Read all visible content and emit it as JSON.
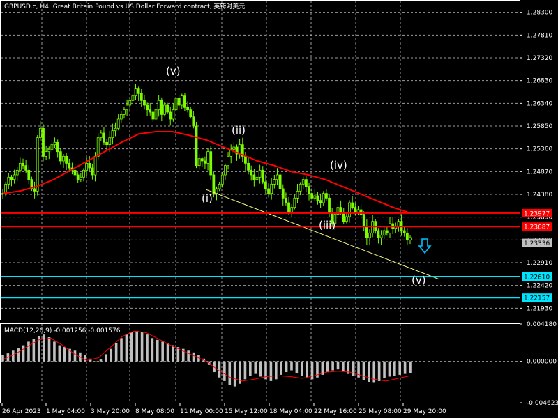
{
  "header": {
    "title": "GBPUSD.c, H4:  Great Britain Pound vs US Dollar Forward contract, 英镑对美元"
  },
  "price_axis": {
    "ticks": [
      "1.28300",
      "1.27810",
      "1.27320",
      "1.26830",
      "1.26340",
      "1.25850",
      "1.25360",
      "1.24870",
      "1.24380",
      "1.23890",
      "1.23400",
      "1.22910",
      "1.22420",
      "1.21930"
    ]
  },
  "price_lines": [
    {
      "name": "resistance-upper",
      "price": "1.23977",
      "color": "#ff0000"
    },
    {
      "name": "resistance-lower",
      "price": "1.23687",
      "color": "#ff0000"
    },
    {
      "name": "current-price",
      "price": "1.23336",
      "color": "#c0c0c0"
    },
    {
      "name": "target-1",
      "price": "1.22610",
      "color": "#00e5ff"
    },
    {
      "name": "target-2",
      "price": "1.22157",
      "color": "#00e5ff"
    }
  ],
  "wave_labels": [
    {
      "text": "(v)"
    },
    {
      "text": "(ii)"
    },
    {
      "text": "(iv)"
    },
    {
      "text": "(i)"
    },
    {
      "text": "(iii)"
    },
    {
      "text": "(v)"
    }
  ],
  "indicator": {
    "label": "MACD(12,26,9) -0.001256 -0.001576",
    "ticks": [
      "0.004180",
      "0.000000",
      "-0.004623"
    ]
  },
  "time_axis": {
    "ticks": [
      "26 Apr 2023",
      "1 May 04:00",
      "3 May 20:00",
      "8 May 08:00",
      "11 May 00:00",
      "15 May 12:00",
      "18 May 04:00",
      "22 May 16:00",
      "25 May 08:00",
      "29 May 20:00"
    ]
  },
  "colors": {
    "candle": "#7cfc00",
    "moving_average": "#ff0000",
    "trendline": "#ffff80",
    "macd_hist": "#c0c0c0",
    "macd_signal": "#ff0000",
    "arrow": "#00bfff",
    "grid": "#cfcfcf"
  },
  "chart_data": {
    "type": "candlestick",
    "symbol": "GBPUSD.c",
    "timeframe": "H4",
    "ylim": [
      1.2168,
      1.2855
    ],
    "close_path": [
      1.244,
      1.246,
      1.2475,
      1.247,
      1.248,
      1.249,
      1.2505,
      1.25,
      1.249,
      1.247,
      1.245,
      1.2445,
      1.256,
      1.258,
      1.252,
      1.253,
      1.2535,
      1.2545,
      1.255,
      1.253,
      1.251,
      1.252,
      1.2505,
      1.2495,
      1.249,
      1.248,
      1.247,
      1.2475,
      1.249,
      1.2505,
      1.2495,
      1.248,
      1.252,
      1.256,
      1.257,
      1.255,
      1.2545,
      1.256,
      1.2575,
      1.258,
      1.26,
      1.261,
      1.262,
      1.263,
      1.264,
      1.265,
      1.2665,
      1.2655,
      1.264,
      1.263,
      1.262,
      1.2615,
      1.26,
      1.262,
      1.264,
      1.261,
      1.263,
      1.2615,
      1.26,
      1.262,
      1.2645,
      1.263,
      1.265,
      1.2625,
      1.262,
      1.2605,
      1.2585,
      1.25,
      1.2515,
      1.251,
      1.2505,
      1.253,
      1.248,
      1.244,
      1.245,
      1.246,
      1.248,
      1.25,
      1.252,
      1.2535,
      1.254,
      1.2525,
      1.2545,
      1.252,
      1.2505,
      1.249,
      1.248,
      1.247,
      1.2475,
      1.249,
      1.2465,
      1.245,
      1.244,
      1.246,
      1.247,
      1.248,
      1.245,
      1.243,
      1.242,
      1.24,
      1.241,
      1.243,
      1.2445,
      1.246,
      1.247,
      1.2455,
      1.244,
      1.243,
      1.2435,
      1.2425,
      1.242,
      1.244,
      1.243,
      1.24,
      1.2375,
      1.2395,
      1.241,
      1.24,
      1.238,
      1.239,
      1.242,
      1.241,
      1.24,
      1.2405,
      1.2395,
      1.237,
      1.2345,
      1.2355,
      1.238,
      1.236,
      1.2345,
      1.235,
      1.236,
      1.2355,
      1.2375,
      1.2365,
      1.237,
      1.238,
      1.236,
      1.2355,
      1.234,
      1.2345
    ],
    "ma_path": [
      1.244,
      1.2445,
      1.2455,
      1.247,
      1.249,
      1.251,
      1.253,
      1.255,
      1.2568,
      1.2573,
      1.2573,
      1.2565,
      1.2555,
      1.254,
      1.2525,
      1.251,
      1.25,
      1.2487,
      1.248,
      1.247,
      1.2455,
      1.244,
      1.2425,
      1.241,
      1.2398
    ],
    "trendline": {
      "start": 1.2448,
      "end": 1.2255
    },
    "macd": {
      "ylim": [
        -0.004623,
        0.00418
      ],
      "hist": [
        0.0007,
        0.0009,
        0.0012,
        0.0015,
        0.0018,
        0.0022,
        0.0025,
        0.0028,
        0.003,
        0.0027,
        0.0022,
        0.0018,
        0.0016,
        0.0014,
        0.0012,
        0.001,
        0.0007,
        0.0003,
        0.0,
        0.0002,
        0.0008,
        0.0014,
        0.002,
        0.0026,
        0.003,
        0.0033,
        0.0034,
        0.0033,
        0.003,
        0.0026,
        0.0024,
        0.0022,
        0.002,
        0.0018,
        0.0016,
        0.0014,
        0.0012,
        0.001,
        0.0007,
        0.0003,
        -0.0004,
        -0.0012,
        -0.0018,
        -0.0022,
        -0.0026,
        -0.0028,
        -0.0025,
        -0.002,
        -0.0016,
        -0.0014,
        -0.0017,
        -0.002,
        -0.0022,
        -0.002,
        -0.0015,
        -0.0012,
        -0.001,
        -0.0013,
        -0.0016,
        -0.0019,
        -0.002,
        -0.0018,
        -0.0015,
        -0.0012,
        -0.001,
        -0.0009,
        -0.0011,
        -0.0014,
        -0.0016,
        -0.0018,
        -0.0021,
        -0.0023,
        -0.0024,
        -0.0022,
        -0.0019,
        -0.0017,
        -0.0016,
        -0.0015,
        -0.0014,
        -0.0013
      ],
      "signal": [
        0.0002,
        0.0008,
        0.0016,
        0.0024,
        0.0026,
        0.0018,
        0.0008,
        0.0001,
        0.0004,
        0.0016,
        0.0028,
        0.0034,
        0.0032,
        0.0025,
        0.0018,
        0.0012,
        0.0006,
        0.0,
        -0.001,
        -0.0018,
        -0.0022,
        -0.002,
        -0.0017,
        -0.0016,
        -0.0017,
        -0.0019,
        -0.0016,
        -0.0012,
        -0.0011,
        -0.0012,
        -0.0016,
        -0.002,
        -0.0022,
        -0.0019,
        -0.0016
      ]
    }
  }
}
